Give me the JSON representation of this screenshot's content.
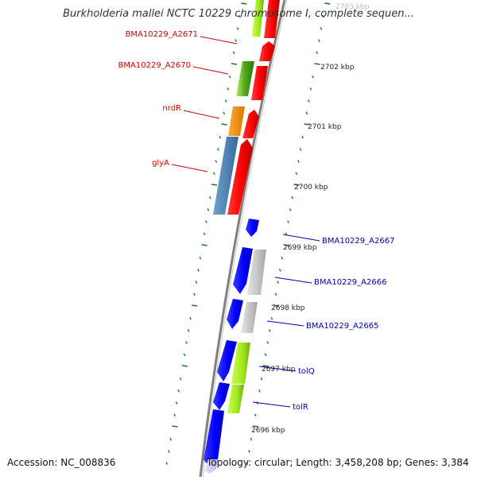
{
  "header": {
    "title": "Burkholderia mallei NCTC 10229 chromosome I, complete sequen..."
  },
  "footer": {
    "accession": "Accession: NC_008836",
    "topology": "Topology: circular; Length: 3,458,208 bp; Genes: 3,384"
  },
  "colors": {
    "forward_label": "#cc0000",
    "reverse_label": "#0000aa",
    "tick": "#1a7a1a",
    "backbone": "#808080"
  },
  "scale": {
    "ticks": [
      "2703 kbp",
      "2702 kbp",
      "2701 kbp",
      "2700 kbp",
      "2699 kbp",
      "2698 kbp",
      "2697 kbp",
      "2696 kbp"
    ]
  },
  "genes": {
    "forward": [
      {
        "label": "BMA10229_A2671",
        "cog_color": "#88dd22"
      },
      {
        "label": "BMA10229_A2670",
        "cog_color": "#88dd22"
      },
      {
        "label": "nrdR",
        "cog_color": "#ff8c00"
      },
      {
        "label": "glyA",
        "cog_color": "#4682b4"
      }
    ],
    "reverse": [
      {
        "label": "BMA10229_A2667",
        "cog_color": ""
      },
      {
        "label": "BMA10229_A2666",
        "cog_color": "#c0c0c0"
      },
      {
        "label": "BMA10229_A2665",
        "cog_color": "#c0c0c0"
      },
      {
        "label": "tolQ",
        "cog_color": "#aaf020"
      },
      {
        "label": "tolR",
        "cog_color": "#aaf020"
      }
    ]
  }
}
